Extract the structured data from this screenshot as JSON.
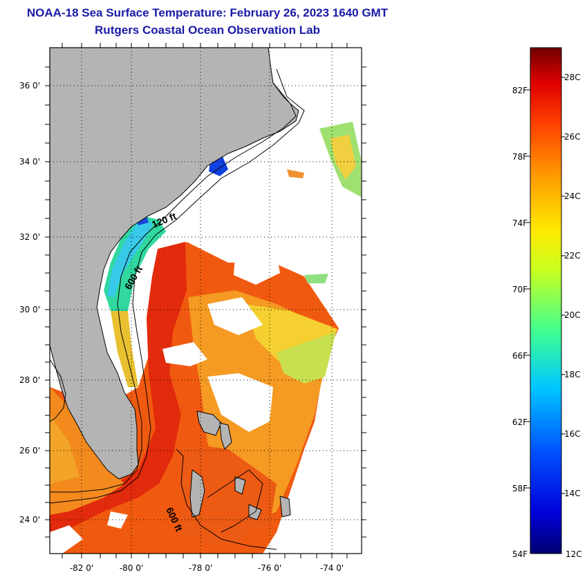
{
  "title": "NOAA-18 Sea Surface Temperature:  February 26, 2023 1640 GMT",
  "subtitle": "Rutgers Coastal Ocean Observation Lab",
  "map": {
    "lon_labels": [
      "-82 0'",
      "-80 0'",
      "-78 0'",
      "-76 0'",
      "-74 0'"
    ],
    "lat_labels": [
      "36 0'",
      "34 0'",
      "32 0'",
      "30 0'",
      "28 0'",
      "26 0'",
      "24 0'"
    ],
    "isobath_labels": [
      {
        "text": "120 ft"
      },
      {
        "text": "600 ft"
      },
      {
        "text": "600 ft"
      }
    ],
    "colors": {
      "land": "#b4b4b4",
      "no_data": "#ffffff",
      "frame": "#000000"
    }
  },
  "colorbar": {
    "fahrenheit_labels": [
      "82F",
      "78F",
      "74F",
      "70F",
      "66F",
      "62F",
      "58F",
      "54F"
    ],
    "celsius_labels": [
      "28C",
      "26C",
      "24C",
      "22C",
      "20C",
      "18C",
      "16C",
      "14C",
      "12C"
    ]
  }
}
